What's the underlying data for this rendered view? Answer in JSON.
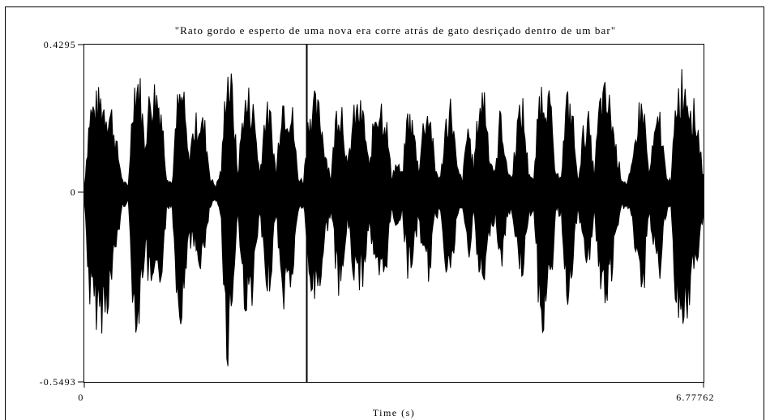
{
  "chart_data": {
    "type": "area",
    "chart_kind": "waveform",
    "title": "\"Rato gordo e esperto de uma nova era corre atrás de gato desriçado dentro de um bar\"",
    "xlabel": "Time (s)",
    "ylabel": "",
    "xlim": [
      0,
      6.77762
    ],
    "ylim": [
      -0.5493,
      0.4295
    ],
    "x_tick_labels": [
      "0",
      "6.77762"
    ],
    "y_tick_labels": [
      "0.4295",
      "0",
      "-0.5493"
    ],
    "grid": false,
    "legend": "none",
    "colors": {
      "waveform": "#000000",
      "background": "#ffffff",
      "axes": "#000000"
    },
    "series": [
      {
        "x": [
          0.0,
          0.06,
          0.12,
          0.18,
          0.24,
          0.3,
          0.36,
          0.42,
          0.48,
          0.54,
          0.6,
          0.66,
          0.72,
          0.78,
          0.84,
          0.9,
          0.96,
          1.02,
          1.08,
          1.14,
          1.2,
          1.26,
          1.32,
          1.38,
          1.44,
          1.5,
          1.56,
          1.62,
          1.68,
          1.74,
          1.8,
          1.86,
          1.92,
          1.98,
          2.04,
          2.1,
          2.16,
          2.22,
          2.28,
          2.34,
          2.4,
          2.46,
          2.52,
          2.58,
          2.64,
          2.7,
          2.76,
          2.82,
          2.88,
          2.94,
          3.0,
          3.06,
          3.12,
          3.18,
          3.24,
          3.3,
          3.36,
          3.42,
          3.48,
          3.54,
          3.6,
          3.66,
          3.72,
          3.78,
          3.84,
          3.9,
          3.96,
          4.02,
          4.08,
          4.14,
          4.2,
          4.26,
          4.32,
          4.38,
          4.44,
          4.5,
          4.56,
          4.62,
          4.68,
          4.74,
          4.8,
          4.86,
          4.92,
          4.98,
          5.04,
          5.1,
          5.16,
          5.22,
          5.28,
          5.34,
          5.4,
          5.46,
          5.52,
          5.58,
          5.64,
          5.7,
          5.76,
          5.82,
          5.88,
          5.94,
          6.0,
          6.06,
          6.12,
          6.18,
          6.24,
          6.3,
          6.36,
          6.42,
          6.48,
          6.54,
          6.6,
          6.66,
          6.72,
          6.77762
        ],
        "max": [
          0.02,
          0.28,
          0.3,
          0.32,
          0.29,
          0.27,
          0.15,
          0.04,
          0.02,
          0.37,
          0.39,
          0.18,
          0.33,
          0.35,
          0.3,
          0.06,
          0.03,
          0.3,
          0.34,
          0.12,
          0.22,
          0.26,
          0.22,
          0.05,
          0.02,
          0.08,
          0.43,
          0.34,
          0.06,
          0.29,
          0.32,
          0.27,
          0.06,
          0.28,
          0.25,
          0.06,
          0.33,
          0.3,
          0.26,
          0.05,
          0.04,
          0.28,
          0.3,
          0.27,
          0.14,
          0.05,
          0.28,
          0.3,
          0.08,
          0.25,
          0.29,
          0.25,
          0.08,
          0.28,
          0.31,
          0.26,
          0.06,
          0.1,
          0.06,
          0.27,
          0.22,
          0.08,
          0.26,
          0.28,
          0.08,
          0.05,
          0.25,
          0.3,
          0.08,
          0.04,
          0.24,
          0.08,
          0.3,
          0.34,
          0.12,
          0.07,
          0.29,
          0.09,
          0.05,
          0.24,
          0.29,
          0.08,
          0.04,
          0.33,
          0.36,
          0.3,
          0.05,
          0.07,
          0.31,
          0.28,
          0.04,
          0.2,
          0.24,
          0.06,
          0.3,
          0.33,
          0.29,
          0.15,
          0.05,
          0.03,
          0.09,
          0.27,
          0.3,
          0.06,
          0.19,
          0.26,
          0.08,
          0.03,
          0.33,
          0.38,
          0.36,
          0.29,
          0.22,
          0.05,
          0.03
        ],
        "min": [
          -0.03,
          -0.36,
          -0.4,
          -0.42,
          -0.38,
          -0.3,
          -0.16,
          -0.05,
          -0.03,
          -0.4,
          -0.42,
          -0.2,
          -0.33,
          -0.35,
          -0.28,
          -0.07,
          -0.04,
          -0.36,
          -0.4,
          -0.14,
          -0.2,
          -0.24,
          -0.2,
          -0.05,
          -0.03,
          -0.09,
          -0.55,
          -0.36,
          -0.07,
          -0.34,
          -0.38,
          -0.3,
          -0.07,
          -0.32,
          -0.28,
          -0.07,
          -0.36,
          -0.33,
          -0.28,
          -0.06,
          -0.05,
          -0.3,
          -0.34,
          -0.3,
          -0.15,
          -0.06,
          -0.28,
          -0.33,
          -0.09,
          -0.26,
          -0.3,
          -0.27,
          -0.09,
          -0.28,
          -0.32,
          -0.26,
          -0.07,
          -0.11,
          -0.07,
          -0.26,
          -0.22,
          -0.09,
          -0.25,
          -0.27,
          -0.09,
          -0.06,
          -0.24,
          -0.28,
          -0.09,
          -0.05,
          -0.22,
          -0.09,
          -0.28,
          -0.32,
          -0.13,
          -0.08,
          -0.26,
          -0.1,
          -0.06,
          -0.22,
          -0.26,
          -0.09,
          -0.05,
          -0.4,
          -0.42,
          -0.35,
          -0.06,
          -0.08,
          -0.34,
          -0.3,
          -0.05,
          -0.2,
          -0.24,
          -0.07,
          -0.3,
          -0.36,
          -0.31,
          -0.16,
          -0.06,
          -0.04,
          -0.1,
          -0.3,
          -0.34,
          -0.07,
          -0.2,
          -0.26,
          -0.09,
          -0.04,
          -0.38,
          -0.42,
          -0.38,
          -0.3,
          -0.22,
          -0.06,
          -0.04
        ]
      }
    ]
  }
}
